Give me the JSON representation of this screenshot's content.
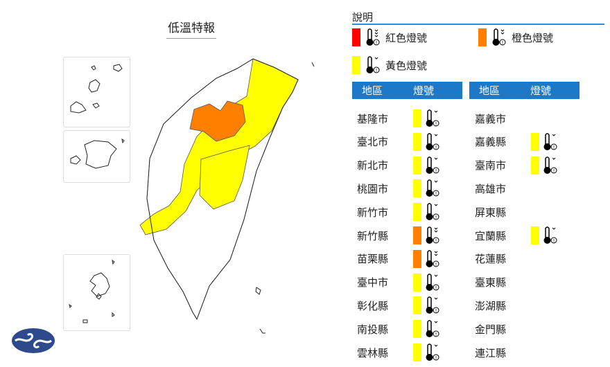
{
  "title": "低溫特報",
  "colors": {
    "red": "#ff0000",
    "orange": "#ff8000",
    "yellow": "#ffff00",
    "header": "#1e78c8"
  },
  "legend": {
    "title": "說明",
    "items": [
      {
        "label": "紅色燈號",
        "color": "#ff0000",
        "icon": "thermometer-3-arrows-icon"
      },
      {
        "label": "橙色燈號",
        "color": "#ff8000",
        "icon": "thermometer-2-arrows-icon"
      },
      {
        "label": "黃色燈號",
        "color": "#ffff00",
        "icon": "thermometer-1-arrow-icon"
      }
    ]
  },
  "table": {
    "headers": [
      "地區",
      "燈號"
    ],
    "left": [
      {
        "name": "基隆市",
        "level": "yellow"
      },
      {
        "name": "臺北市",
        "level": "yellow"
      },
      {
        "name": "新北市",
        "level": "yellow"
      },
      {
        "name": "桃園市",
        "level": "yellow"
      },
      {
        "name": "新竹市",
        "level": "yellow"
      },
      {
        "name": "新竹縣",
        "level": "orange"
      },
      {
        "name": "苗栗縣",
        "level": "orange"
      },
      {
        "name": "臺中市",
        "level": "yellow"
      },
      {
        "name": "彰化縣",
        "level": "yellow"
      },
      {
        "name": "南投縣",
        "level": "yellow"
      },
      {
        "name": "雲林縣",
        "level": "yellow"
      }
    ],
    "right": [
      {
        "name": "嘉義市",
        "level": ""
      },
      {
        "name": "嘉義縣",
        "level": "yellow"
      },
      {
        "name": "臺南市",
        "level": "yellow"
      },
      {
        "name": "高雄市",
        "level": ""
      },
      {
        "name": "屏東縣",
        "level": ""
      },
      {
        "name": "宜蘭縣",
        "level": "yellow"
      },
      {
        "name": "花蓮縣",
        "level": ""
      },
      {
        "name": "臺東縣",
        "level": ""
      },
      {
        "name": "澎湖縣",
        "level": ""
      },
      {
        "name": "金門縣",
        "level": ""
      },
      {
        "name": "連江縣",
        "level": ""
      }
    ]
  },
  "logo": {
    "name": "cwa-logo"
  }
}
